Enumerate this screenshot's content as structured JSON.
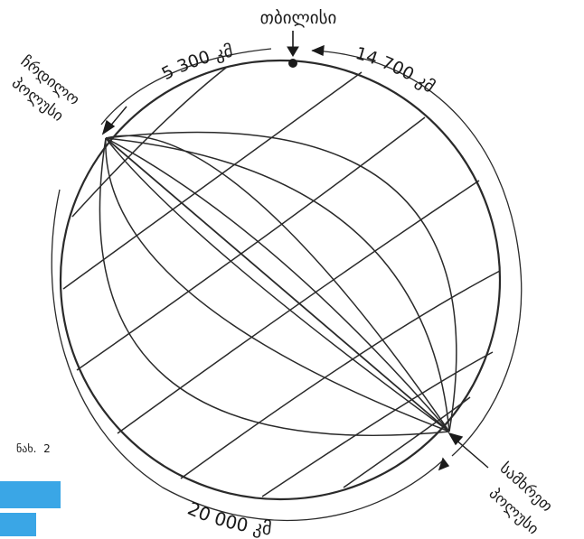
{
  "labels": {
    "city": "თბილისი",
    "north_pole_line1": "ჩრდილო",
    "north_pole_line2": "პოლუსი",
    "south_pole_line1": "სამხრეთ",
    "south_pole_line2": "პოლუსი",
    "dist_left": "5 300 კმ",
    "dist_right": "14 700 კმ",
    "dist_bottom": "20 000 კმ",
    "figure_caption": "ნახ.  2"
  },
  "colors": {
    "ink": "#2a2a2a",
    "paper": "#ffffff",
    "accent_blue": "#3aa6e6"
  }
}
